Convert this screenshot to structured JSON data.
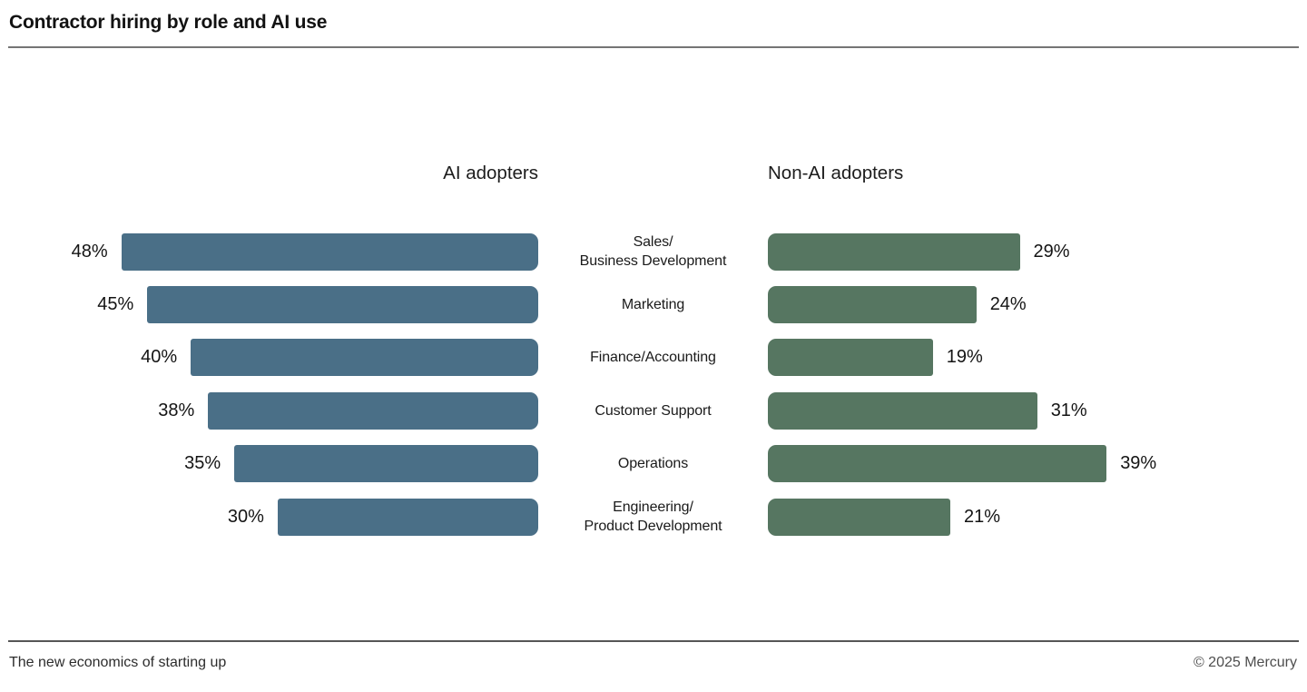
{
  "title": "Contractor hiring by role and AI use",
  "footer": {
    "caption": "The new economics of starting up",
    "copyright": "© 2025 Mercury"
  },
  "chart_data": {
    "type": "bar",
    "subtype": "diverging-horizontal",
    "title": "Contractor hiring by role and AI use",
    "categories": [
      "Sales/Business Development",
      "Marketing",
      "Finance/Accounting",
      "Customer Support",
      "Operations",
      "Engineering/Product Development"
    ],
    "category_lines": [
      [
        "Sales/",
        "Business Development"
      ],
      [
        "Marketing"
      ],
      [
        "Finance/Accounting"
      ],
      [
        "Customer Support"
      ],
      [
        "Operations"
      ],
      [
        "Engineering/",
        "Product Development"
      ]
    ],
    "series": [
      {
        "name": "AI adopters",
        "side": "left",
        "color": "#4a6f87",
        "values": [
          48,
          45,
          40,
          38,
          35,
          30
        ]
      },
      {
        "name": "Non-AI adopters",
        "side": "right",
        "color": "#567661",
        "values": [
          29,
          24,
          19,
          31,
          39,
          21
        ]
      }
    ],
    "value_suffix": "%",
    "xlim": [
      0,
      50
    ],
    "grid": false,
    "legend_position": "column-headers-above-each-side"
  }
}
